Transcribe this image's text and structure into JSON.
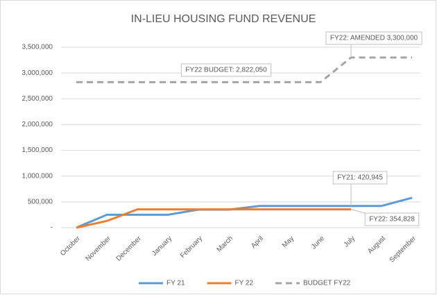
{
  "chart_data": {
    "type": "line",
    "title": "IN-LIEU HOUSING FUND REVENUE",
    "categories": [
      "October",
      "November",
      "December",
      "January",
      "February",
      "March",
      "April",
      "May",
      "June",
      "July",
      "August",
      "September"
    ],
    "series": [
      {
        "name": "FY 21",
        "color": "#5b9bd5",
        "values": [
          0,
          250000,
          250000,
          250000,
          350000,
          350000,
          420945,
          420945,
          420945,
          420945,
          420945,
          580000
        ]
      },
      {
        "name": "FY 22",
        "color": "#ed7d31",
        "values": [
          0,
          130000,
          354828,
          354828,
          354828,
          354828,
          354828,
          354828,
          354828,
          354828,
          null,
          null
        ]
      },
      {
        "name": "BUDGET FY22",
        "color": "#a5a5a5",
        "dashed": true,
        "values": [
          2822050,
          2822050,
          2822050,
          2822050,
          2822050,
          2822050,
          2822050,
          2822050,
          2822050,
          3300000,
          3300000,
          3300000
        ]
      }
    ],
    "ylim": [
      0,
      3500000
    ],
    "yticks": [
      {
        "value": 0,
        "label": "-"
      },
      {
        "value": 500000,
        "label": "500,000"
      },
      {
        "value": 1000000,
        "label": "1,000,000"
      },
      {
        "value": 1500000,
        "label": "1,500,000"
      },
      {
        "value": 2000000,
        "label": "2,000,000"
      },
      {
        "value": 2500000,
        "label": "2,500,000"
      },
      {
        "value": 3000000,
        "label": "3,000,000"
      },
      {
        "value": 3500000,
        "label": "3,500,000"
      }
    ],
    "grid": true,
    "legend": "bottom",
    "annotations": [
      "FY22 BUDGET: 2,822,050",
      "FY22: AMENDED 3,300,000",
      "FY21: 420,945",
      "FY22: 354,828"
    ]
  }
}
